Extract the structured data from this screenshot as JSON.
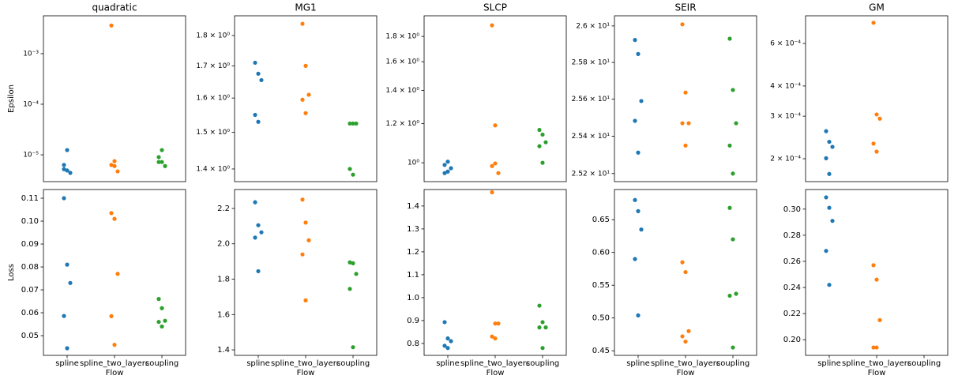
{
  "chart_data": [
    {
      "type": "strip",
      "title": "quadratic",
      "ylabel": "Epsilon",
      "log": true,
      "colors": [
        "#1f77b4",
        "#ff7f0e",
        "#2ca02c"
      ],
      "ylim": [
        2.95e-06,
        0.0056
      ],
      "yticks": [
        {
          "value": 1e-05,
          "label": "10⁻⁵"
        },
        {
          "value": 0.0001,
          "label": "10⁻⁴"
        },
        {
          "value": 0.001,
          "label": "10⁻³"
        }
      ],
      "values": [
        [
          6.3e-06,
          4.9e-06,
          4.4e-06,
          5.2e-06,
          1.24e-05
        ],
        [
          0.0036,
          6e-06,
          4.7e-06,
          6.3e-06,
          7.5e-06
        ],
        [
          9e-06,
          7.2e-06,
          6e-06,
          7.2e-06,
          1.24e-05
        ]
      ]
    },
    {
      "type": "strip",
      "title": "MG1",
      "log": true,
      "colors": [
        "#1f77b4",
        "#ff7f0e",
        "#2ca02c"
      ],
      "ylim": [
        1.367,
        1.868
      ],
      "yticks": [
        {
          "value": 1.4,
          "label": "1.4 × 10⁰"
        },
        {
          "value": 1.5,
          "label": "1.5 × 10⁰"
        },
        {
          "value": 1.6,
          "label": "1.6 × 10⁰"
        },
        {
          "value": 1.7,
          "label": "1.7 × 10⁰"
        },
        {
          "value": 1.8,
          "label": "1.8 × 10⁰"
        }
      ],
      "values": [
        [
          1.71,
          1.675,
          1.655,
          1.55,
          1.53
        ],
        [
          1.84,
          1.7,
          1.61,
          1.595,
          1.555
        ],
        [
          1.525,
          1.525,
          1.525,
          1.4,
          1.385
        ]
      ]
    },
    {
      "type": "strip",
      "title": "SLCP",
      "log": true,
      "colors": [
        "#1f77b4",
        "#ff7f0e",
        "#2ca02c"
      ],
      "ylim": [
        0.916,
        1.981
      ],
      "yticks": [
        {
          "value": 1.0,
          "label": "10⁰"
        },
        {
          "value": 1.2,
          "label": "1.2 × 10⁰"
        },
        {
          "value": 1.4,
          "label": "1.4 × 10⁰"
        },
        {
          "value": 1.6,
          "label": "1.6 × 10⁰"
        },
        {
          "value": 1.8,
          "label": "1.8 × 10⁰"
        }
      ],
      "values": [
        [
          0.953,
          0.96,
          0.975,
          0.99,
          1.005
        ],
        [
          1.895,
          1.19,
          0.953,
          0.985,
          0.997
        ],
        [
          1.165,
          1.14,
          1.1,
          1.08,
          1.0
        ]
      ]
    },
    {
      "type": "strip",
      "title": "SEIR",
      "log": true,
      "colors": [
        "#1f77b4",
        "#ff7f0e",
        "#2ca02c"
      ],
      "ylim": [
        25.157,
        26.056
      ],
      "yticks": [
        {
          "value": 25.2,
          "label": "2.52 × 10¹"
        },
        {
          "value": 25.4,
          "label": "2.54 × 10¹"
        },
        {
          "value": 25.6,
          "label": "2.56 × 10¹"
        },
        {
          "value": 25.8,
          "label": "2.58 × 10¹"
        },
        {
          "value": 26.0,
          "label": "2.6 × 10¹"
        }
      ],
      "values": [
        [
          25.923,
          25.846,
          25.59,
          25.483,
          25.312
        ],
        [
          26.009,
          25.636,
          25.47,
          25.47,
          25.35
        ],
        [
          25.93,
          25.65,
          25.47,
          25.35,
          25.2
        ]
      ]
    },
    {
      "type": "strip",
      "title": "GM",
      "log": true,
      "colors": [
        "#1f77b4",
        "#ff7f0e",
        "#2ca02c"
      ],
      "ylim": [
        0.0001608,
        0.000781
      ],
      "yticks": [
        {
          "value": 0.0002,
          "label": "2 × 10⁻⁴"
        },
        {
          "value": 0.0003,
          "label": "3 × 10⁻⁴"
        },
        {
          "value": 0.0004,
          "label": "4 × 10⁻⁴"
        },
        {
          "value": 0.0006,
          "label": "6 × 10⁻⁴"
        }
      ],
      "values": [
        [
          0.00026,
          0.000235,
          0.000224,
          0.000201,
          0.000173
        ],
        [
          0.000731,
          0.000305,
          0.000293,
          0.000231,
          0.000214
        ],
        []
      ]
    },
    {
      "type": "strip",
      "ylabel": "Loss",
      "xlabel": "Flow",
      "categories": [
        "spline",
        "spline_two_layers",
        "coupling"
      ],
      "colors": [
        "#1f77b4",
        "#ff7f0e",
        "#2ca02c"
      ],
      "ylim": [
        0.0414,
        0.1138
      ],
      "yticks": [
        0.05,
        0.06,
        0.07,
        0.08,
        0.09,
        {
          "value": 0.1,
          "label": "0.10"
        },
        0.11
      ],
      "values": [
        [
          0.11,
          0.081,
          0.073,
          0.0586,
          0.0445
        ],
        [
          0.1035,
          0.101,
          0.077,
          0.0585,
          0.046
        ],
        [
          0.066,
          0.062,
          0.0565,
          0.056,
          0.054
        ]
      ]
    },
    {
      "type": "strip",
      "xlabel": "Flow",
      "categories": [
        "spline",
        "spline_two_layers",
        "coupling"
      ],
      "colors": [
        "#1f77b4",
        "#ff7f0e",
        "#2ca02c"
      ],
      "ylim": [
        1.369,
        2.307
      ],
      "yticks": [
        1.4,
        1.6,
        1.8,
        {
          "value": 2.0,
          "label": "2.0"
        },
        2.2
      ],
      "values": [
        [
          2.235,
          2.105,
          2.065,
          2.035,
          1.845
        ],
        [
          2.25,
          2.12,
          2.02,
          1.94,
          1.68
        ],
        [
          1.895,
          1.89,
          1.83,
          1.745,
          1.415
        ]
      ]
    },
    {
      "type": "strip",
      "xlabel": "Flow",
      "categories": [
        "spline",
        "spline_two_layers",
        "coupling"
      ],
      "colors": [
        "#1f77b4",
        "#ff7f0e",
        "#2ca02c"
      ],
      "ylim": [
        0.748,
        1.472
      ],
      "yticks": [
        0.8,
        0.9,
        {
          "value": 1.0,
          "label": "1.0"
        },
        1.1,
        1.2,
        1.3,
        1.4
      ],
      "values": [
        [
          0.893,
          0.822,
          0.81,
          0.79,
          0.78
        ],
        [
          1.46,
          0.887,
          0.887,
          0.83,
          0.822
        ],
        [
          0.965,
          0.893,
          0.87,
          0.87,
          0.78
        ]
      ]
    },
    {
      "type": "strip",
      "xlabel": "Flow",
      "categories": [
        "spline",
        "spline_two_layers",
        "coupling"
      ],
      "colors": [
        "#1f77b4",
        "#ff7f0e",
        "#2ca02c"
      ],
      "ylim": [
        0.443,
        0.696
      ],
      "yticks": [
        0.45,
        {
          "value": 0.5,
          "label": "0.50"
        },
        0.55,
        {
          "value": 0.6,
          "label": "0.60"
        },
        0.65
      ],
      "values": [
        [
          0.68,
          0.663,
          0.635,
          0.59,
          0.504
        ],
        [
          0.585,
          0.57,
          0.48,
          0.472,
          0.464
        ],
        [
          0.668,
          0.62,
          0.537,
          0.534,
          0.455
        ]
      ]
    },
    {
      "type": "strip",
      "xlabel": "Flow",
      "categories": [
        "spline",
        "spline_two_layers",
        "coupling"
      ],
      "colors": [
        "#1f77b4",
        "#ff7f0e",
        "#2ca02c"
      ],
      "ylim": [
        0.188,
        0.315
      ],
      "yticks": [
        {
          "value": 0.2,
          "label": "0.20"
        },
        0.22,
        0.24,
        0.26,
        0.28,
        {
          "value": 0.3,
          "label": "0.30"
        }
      ],
      "values": [
        [
          0.309,
          0.301,
          0.291,
          0.268,
          0.242
        ],
        [
          0.257,
          0.246,
          0.215,
          0.194,
          0.194
        ],
        []
      ]
    }
  ]
}
